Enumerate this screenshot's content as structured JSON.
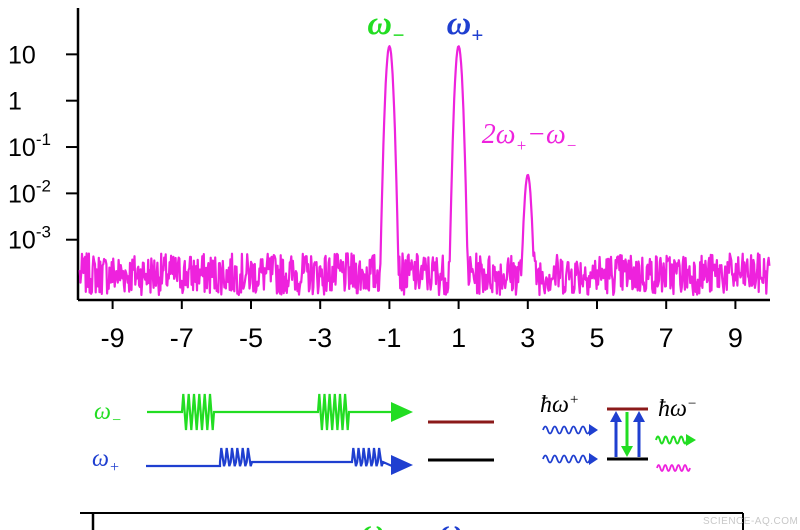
{
  "colors": {
    "spectrum": "#ee22dd",
    "omega_minus": "#22dd22",
    "omega_plus": "#1f3fd0",
    "level_upper": "#8b1a1a",
    "level_lower": "#000000"
  },
  "chart_data": {
    "type": "line",
    "title": "",
    "xlabel": "",
    "ylabel": "",
    "xlim": [
      -10,
      10
    ],
    "ylim": [
      5e-05,
      100
    ],
    "y_scale": "log",
    "x_ticks": [
      -9,
      -7,
      -5,
      -3,
      -1,
      1,
      3,
      5,
      7,
      9
    ],
    "x_tick_labels": [
      "-9",
      "-7",
      "-5",
      "-3",
      "-1",
      "1",
      "3",
      "5",
      "7",
      "9"
    ],
    "y_ticks": [
      {
        "value": 10,
        "base": "10",
        "exp": ""
      },
      {
        "value": 1,
        "base": "1",
        "exp": ""
      },
      {
        "value": 0.1,
        "base": "10",
        "exp": "-1"
      },
      {
        "value": 0.01,
        "base": "10",
        "exp": "-2"
      },
      {
        "value": 0.001,
        "base": "10",
        "exp": "-3"
      }
    ],
    "noise_floor": 0.0002,
    "peaks": [
      {
        "x": -1,
        "height": 15,
        "label_sym": "ω",
        "label_sub": "−",
        "color": "#22dd22"
      },
      {
        "x": 1,
        "height": 15,
        "label_sym": "ω",
        "label_sub": "+",
        "color": "#1f3fd0"
      },
      {
        "x": 3,
        "height": 0.025,
        "label_sym": "2ω",
        "label_sub": "+",
        "label_rest": "−ω",
        "label_sub2": "−",
        "color": "#ee22dd"
      }
    ]
  },
  "diagram": {
    "beam_minus": {
      "sym": "ω",
      "sub": "−"
    },
    "beam_plus": {
      "sym": "ω",
      "sub": "+"
    },
    "photon_plus": {
      "hbar": "ħ",
      "sym": "ω",
      "sub": "+"
    },
    "photon_minus": {
      "hbar": "ħ",
      "sym": "ω",
      "sub": "−"
    }
  },
  "lower_panel": {
    "label_minus": {
      "sym": "ω",
      "sub": "−"
    },
    "label_plus": {
      "sym": "ω"
    }
  },
  "watermark": "SCIENCE-AQ.COM"
}
